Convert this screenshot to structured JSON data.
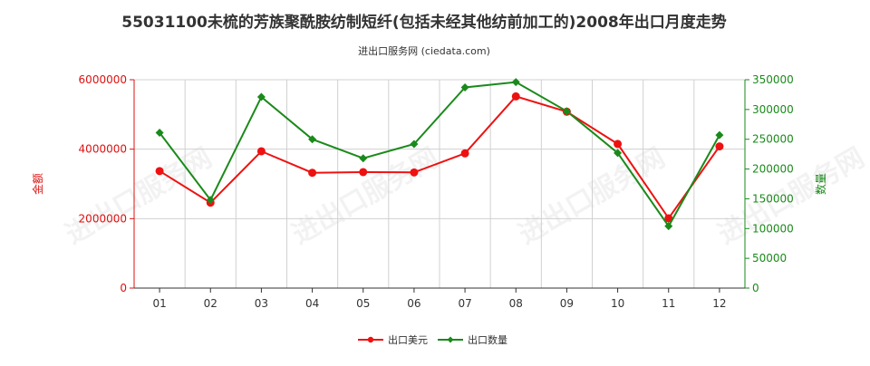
{
  "chart_data": {
    "type": "line",
    "title": "55031100未梳的芳族聚酰胺纺制短纤(包括未经其他纺前加工的)2008年出口月度走势",
    "subtitle": "进出口服务网 (ciedata.com)",
    "watermark": "进出口服务网",
    "categories": [
      "01",
      "02",
      "03",
      "04",
      "05",
      "06",
      "07",
      "08",
      "09",
      "10",
      "11",
      "12"
    ],
    "series": [
      {
        "name": "出口美元",
        "axis": "left",
        "color": "#ee1111",
        "values": [
          3370000,
          2460000,
          3940000,
          3320000,
          3340000,
          3330000,
          3880000,
          5520000,
          5080000,
          4150000,
          2010000,
          4080000
        ]
      },
      {
        "name": "出口数量",
        "axis": "right",
        "color": "#1a8a1a",
        "values": [
          261000,
          148000,
          321000,
          250000,
          218000,
          242000,
          337000,
          346000,
          297000,
          227000,
          104000,
          257000
        ]
      }
    ],
    "ylabel_left": "金额",
    "ylabel_right": "数量",
    "ylim_left": [
      0,
      6000000
    ],
    "ylim_right": [
      0,
      350000
    ],
    "yticks_left": [
      "0",
      "2000000",
      "4000000",
      "6000000"
    ],
    "yticks_right": [
      "0",
      "50000",
      "100000",
      "150000",
      "200000",
      "250000",
      "300000",
      "350000"
    ],
    "left_axis_color": "#dd1111",
    "right_axis_color": "#1a8a1a",
    "grid": true,
    "legend_position": "bottom"
  }
}
